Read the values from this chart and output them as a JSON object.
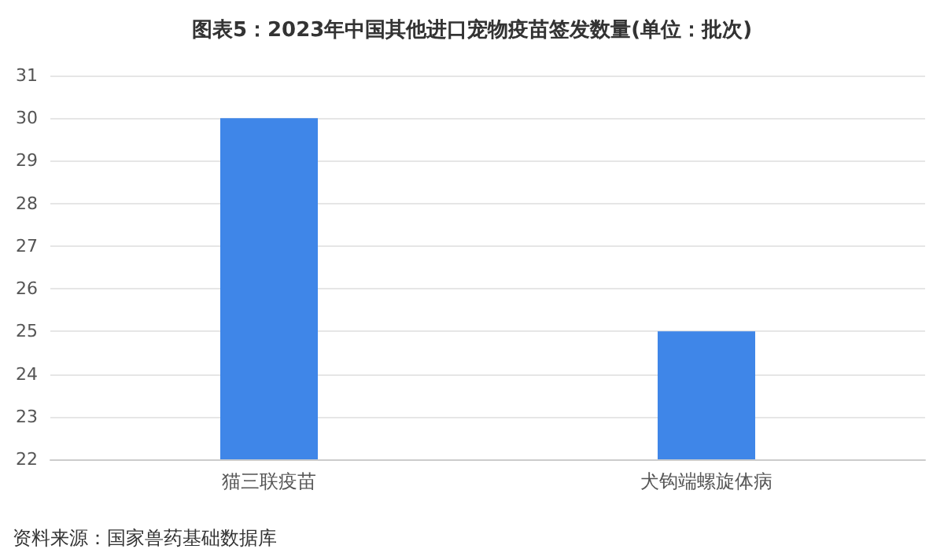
{
  "chart_data": {
    "type": "bar",
    "title": "图表5：2023年中国其他进口宠物疫苗签发数量(单位：批次)",
    "categories": [
      "猫三联疫苗",
      "犬钩端螺旋体病"
    ],
    "values": [
      30,
      25
    ],
    "color": "#3f86e8",
    "ylim": [
      22,
      31
    ],
    "yticks": [
      22,
      23,
      24,
      25,
      26,
      27,
      28,
      29,
      30,
      31
    ],
    "grid": "y",
    "annotations": [
      "资料来源：国家兽药基础数据库"
    ]
  }
}
